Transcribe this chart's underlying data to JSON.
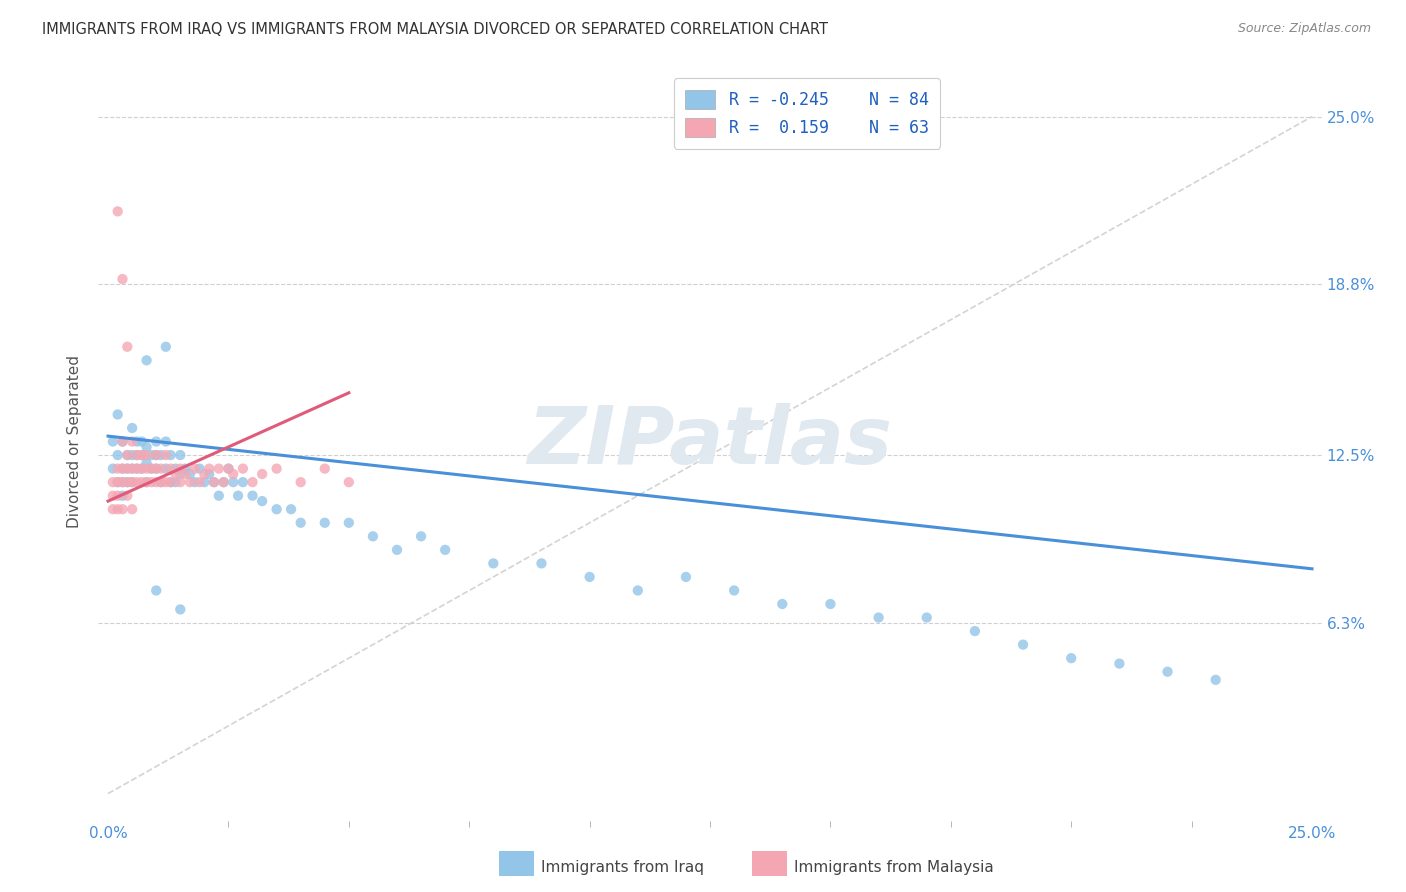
{
  "title": "IMMIGRANTS FROM IRAQ VS IMMIGRANTS FROM MALAYSIA DIVORCED OR SEPARATED CORRELATION CHART",
  "source": "Source: ZipAtlas.com",
  "ylabel": "Divorced or Separated",
  "ytick_values": [
    0.063,
    0.125,
    0.188,
    0.25
  ],
  "ytick_labels": [
    "6.3%",
    "12.5%",
    "18.8%",
    "25.0%"
  ],
  "xlim": [
    0.0,
    0.25
  ],
  "ylim": [
    -0.01,
    0.27
  ],
  "iraq_color": "#93c5e8",
  "malaysia_color": "#f4a7b3",
  "iraq_line_color": "#4a90d9",
  "malaysia_line_color": "#e05a7a",
  "diag_color": "#cccccc",
  "grid_color": "#d0d0d0",
  "right_tick_color": "#4a90d9",
  "legend_R_iraq": "R = -0.245",
  "legend_N_iraq": "N = 84",
  "legend_R_malaysia": "R =  0.159",
  "legend_N_malaysia": "N = 63",
  "iraq_line_x": [
    0.0,
    0.25
  ],
  "iraq_line_y": [
    0.132,
    0.083
  ],
  "malaysia_line_x": [
    0.0,
    0.05
  ],
  "malaysia_line_y": [
    0.108,
    0.148
  ],
  "iraq_x": [
    0.001,
    0.001,
    0.002,
    0.002,
    0.002,
    0.003,
    0.003,
    0.003,
    0.003,
    0.004,
    0.004,
    0.004,
    0.005,
    0.005,
    0.005,
    0.005,
    0.006,
    0.006,
    0.006,
    0.007,
    0.007,
    0.007,
    0.008,
    0.008,
    0.008,
    0.009,
    0.009,
    0.01,
    0.01,
    0.01,
    0.011,
    0.011,
    0.012,
    0.012,
    0.013,
    0.013,
    0.014,
    0.014,
    0.015,
    0.015,
    0.016,
    0.017,
    0.018,
    0.019,
    0.02,
    0.021,
    0.022,
    0.023,
    0.024,
    0.025,
    0.026,
    0.027,
    0.028,
    0.03,
    0.032,
    0.035,
    0.038,
    0.04,
    0.045,
    0.05,
    0.055,
    0.06,
    0.065,
    0.07,
    0.08,
    0.09,
    0.1,
    0.11,
    0.12,
    0.13,
    0.14,
    0.15,
    0.16,
    0.17,
    0.18,
    0.19,
    0.2,
    0.21,
    0.22,
    0.23,
    0.012,
    0.008,
    0.01,
    0.015
  ],
  "iraq_y": [
    0.13,
    0.12,
    0.14,
    0.125,
    0.115,
    0.13,
    0.12,
    0.115,
    0.11,
    0.125,
    0.12,
    0.115,
    0.135,
    0.125,
    0.12,
    0.115,
    0.13,
    0.125,
    0.12,
    0.13,
    0.125,
    0.12,
    0.128,
    0.122,
    0.115,
    0.125,
    0.12,
    0.13,
    0.125,
    0.12,
    0.125,
    0.115,
    0.13,
    0.12,
    0.125,
    0.115,
    0.12,
    0.115,
    0.125,
    0.118,
    0.12,
    0.118,
    0.115,
    0.12,
    0.115,
    0.118,
    0.115,
    0.11,
    0.115,
    0.12,
    0.115,
    0.11,
    0.115,
    0.11,
    0.108,
    0.105,
    0.105,
    0.1,
    0.1,
    0.1,
    0.095,
    0.09,
    0.095,
    0.09,
    0.085,
    0.085,
    0.08,
    0.075,
    0.08,
    0.075,
    0.07,
    0.07,
    0.065,
    0.065,
    0.06,
    0.055,
    0.05,
    0.048,
    0.045,
    0.042,
    0.165,
    0.16,
    0.075,
    0.068
  ],
  "malaysia_x": [
    0.001,
    0.001,
    0.001,
    0.002,
    0.002,
    0.002,
    0.002,
    0.003,
    0.003,
    0.003,
    0.003,
    0.004,
    0.004,
    0.004,
    0.004,
    0.005,
    0.005,
    0.005,
    0.005,
    0.006,
    0.006,
    0.006,
    0.007,
    0.007,
    0.007,
    0.008,
    0.008,
    0.008,
    0.009,
    0.009,
    0.01,
    0.01,
    0.01,
    0.011,
    0.011,
    0.012,
    0.012,
    0.013,
    0.013,
    0.014,
    0.015,
    0.015,
    0.016,
    0.017,
    0.018,
    0.019,
    0.02,
    0.021,
    0.022,
    0.023,
    0.024,
    0.025,
    0.026,
    0.028,
    0.03,
    0.032,
    0.035,
    0.04,
    0.045,
    0.05,
    0.002,
    0.003,
    0.004
  ],
  "malaysia_y": [
    0.115,
    0.11,
    0.105,
    0.12,
    0.115,
    0.11,
    0.105,
    0.13,
    0.12,
    0.115,
    0.105,
    0.125,
    0.12,
    0.115,
    0.11,
    0.13,
    0.12,
    0.115,
    0.105,
    0.125,
    0.12,
    0.115,
    0.125,
    0.12,
    0.115,
    0.125,
    0.12,
    0.115,
    0.12,
    0.115,
    0.125,
    0.12,
    0.115,
    0.12,
    0.115,
    0.125,
    0.115,
    0.12,
    0.115,
    0.118,
    0.12,
    0.115,
    0.118,
    0.115,
    0.12,
    0.115,
    0.118,
    0.12,
    0.115,
    0.12,
    0.115,
    0.12,
    0.118,
    0.12,
    0.115,
    0.118,
    0.12,
    0.115,
    0.12,
    0.115,
    0.215,
    0.19,
    0.165
  ]
}
